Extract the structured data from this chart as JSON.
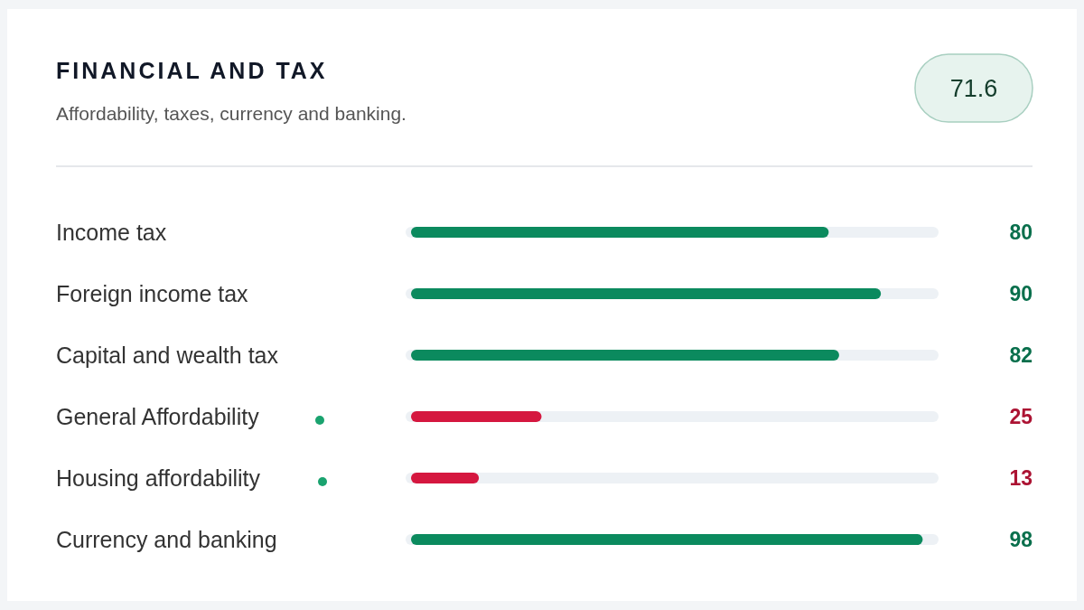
{
  "chart_data": {
    "type": "bar",
    "orientation": "horizontal",
    "title": "FINANCIAL AND TAX",
    "subtitle": "Affordability, taxes, currency and banking.",
    "annotations": [
      "71.6"
    ],
    "categories": [
      "Income tax",
      "Foreign income tax",
      "Capital and wealth tax",
      "General Affordability",
      "Housing affordability",
      "Currency and banking"
    ],
    "values": [
      80,
      90,
      82,
      25,
      13,
      98
    ],
    "colors": [
      "#0b8a5e",
      "#0b8a5e",
      "#0b8a5e",
      "#d5173f",
      "#d5173f",
      "#0b8a5e"
    ],
    "xlim": [
      0,
      100
    ],
    "data_labels": true,
    "tick_labels": false
  }
}
